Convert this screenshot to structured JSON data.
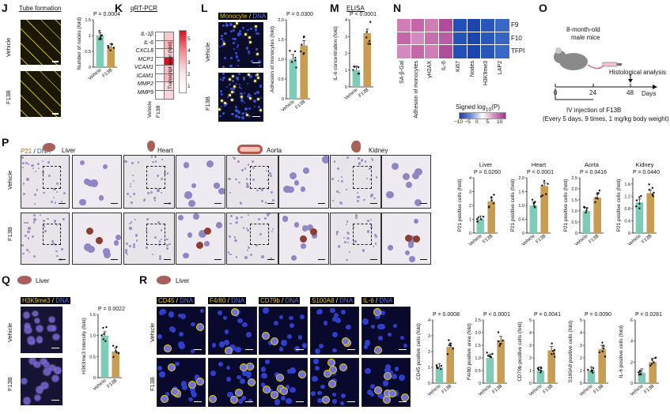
{
  "panels": {
    "J": {
      "letter": "J",
      "title": "Tube formation",
      "row_labels": [
        "Vehicle",
        "F13B"
      ],
      "p": "P = 0.0004"
    },
    "K": {
      "letter": "K",
      "title": "qRT-PCR",
      "genes": [
        "IL-1β",
        "IL-6",
        "CXCL8",
        "MCP1",
        "VCAM1",
        "ICAM1",
        "MMP2",
        "MMP9"
      ],
      "colorbar_label": "Transcript level (fold)",
      "colorbar_ticks": [
        "5",
        "4",
        "3",
        "2",
        "1"
      ],
      "col_labels": [
        "Vehicle",
        "F13B"
      ],
      "f13b_colors": [
        "#f6c8cc",
        "#f4b5bb",
        "#f7cfd3",
        "#d9101d",
        "#f6c1c6",
        "#f5bac0",
        "#f9dadd",
        "#f8d4d8"
      ]
    },
    "L": {
      "letter": "L",
      "title_a": "Monocyte",
      "title_sep": " / ",
      "title_b": "DNA",
      "row_labels": [
        "Vehicle",
        "F13B"
      ],
      "p": "P = 0.0300"
    },
    "M": {
      "letter": "M",
      "title": "ELISA",
      "p": "P < 0.0001"
    },
    "N": {
      "letter": "N",
      "rows": [
        "F9",
        "F10",
        "TFPI"
      ],
      "cols": [
        "SA-β-Gal",
        "Adhesion of monocytes",
        "γH2AX",
        "IL-6",
        "Ki67",
        "Nodes",
        "H3K9me3",
        "LAP2"
      ],
      "colors": [
        [
          "#cf7fb6",
          "#c466a9",
          "#cf7fb6",
          "#b04d9a",
          "#2250b8",
          "#1e44ad",
          "#2a56bb",
          "#3a68c4"
        ],
        [
          "#c466a9",
          "#d48ac0",
          "#c570ab",
          "#ba5ca3",
          "#2352b8",
          "#1e44ad",
          "#2856bb",
          "#3666c2"
        ],
        [
          "#d48ac0",
          "#c466a9",
          "#cf7fb6",
          "#b04d9a",
          "#2250b8",
          "#1e44ad",
          "#2a56bb",
          "#3a68c4"
        ]
      ],
      "legend_title": "Signed log",
      "legend_sub": "10",
      "legend_title_end": "(P)",
      "legend_ticks": [
        "−10",
        "−5",
        "0",
        "5",
        "10"
      ]
    },
    "O": {
      "letter": "O",
      "mouse_text_1": "8-month-old",
      "mouse_text_2": "male mice",
      "timeline_ticks": [
        "0",
        "24",
        "48"
      ],
      "timeline_unit": "Days",
      "histology": "Histological analysis",
      "injection_1": "IV injection of F13B",
      "injection_2": "(Every 5 days, 9 times, 1 mg/kg body weight)"
    },
    "P": {
      "letter": "P",
      "stain_a": "P21",
      "stain_sep": " / ",
      "stain_b": "DNA",
      "organs": [
        "Liver",
        "Heart",
        "Aorta",
        "Kidney"
      ],
      "row_labels": [
        "Vehicle",
        "F13B"
      ],
      "ylabel": "P21 positive cells (fold)",
      "pvals": [
        "P = 0.0260",
        "P < 0.0001",
        "P = 0.0416",
        "P = 0.0440"
      ]
    },
    "Q": {
      "letter": "Q",
      "organ": "Liver",
      "stain_a": "H3K9me3",
      "stain_sep": " / ",
      "stain_b": "DNA",
      "row_labels": [
        "Vehicle",
        "F13B"
      ],
      "p": "P = 0.0022",
      "ylabel": "H3K9me3 Intensity (fold)"
    },
    "R": {
      "letter": "R",
      "organ": "Liver",
      "stains": [
        "CD45",
        "F4/80",
        "CD79b",
        "S100A8",
        "IL-6"
      ],
      "stain_sep": " / ",
      "stain_dna": "DNA",
      "row_labels": [
        "Vehicle",
        "F13B"
      ],
      "ylabels": [
        "CD45 positive cells (fold)",
        "F4/80 positive area (fold)",
        "CD79b positive cells (fold)",
        "S100A8 positive cells (fold)",
        "IL-6 positive cells (fold)"
      ],
      "pvals": [
        "P = 0.0008",
        "P < 0.0001",
        "P = 0.0041",
        "P = 0.0090",
        "P = 0.0281"
      ]
    }
  },
  "colors": {
    "vehicle": "#7fcbb7",
    "f13b": "#c79c55",
    "yellow": "#f0d000",
    "dna": "#3b5bd6"
  },
  "chart_data": [
    {
      "type": "bar",
      "panel": "J",
      "categories": [
        "Vehicle",
        "F13B"
      ],
      "values": [
        1.0,
        0.65
      ],
      "ylabel": "Number of nodes (fold)",
      "ylim": [
        0,
        1.5
      ],
      "yticks": [
        "0",
        "0.5",
        "1",
        "1.5"
      ],
      "p": "P = 0.0004"
    },
    {
      "type": "bar",
      "panel": "L",
      "categories": [
        "Vehicle",
        "F13B"
      ],
      "values": [
        1.0,
        1.35
      ],
      "ylabel": "Adhesion of monocytes (fold)",
      "ylim": [
        0,
        2.0
      ],
      "yticks": [
        "0",
        "0.5",
        "1.0",
        "1.5",
        "2.0"
      ],
      "p": "P = 0.0300"
    },
    {
      "type": "bar",
      "panel": "M",
      "categories": [
        "Vehicle",
        "F13B"
      ],
      "values": [
        1.0,
        3.2
      ],
      "ylabel": "IL-6 concentration (fold)",
      "ylim": [
        0,
        4
      ],
      "yticks": [
        "0",
        "1",
        "2",
        "3",
        "4"
      ],
      "p": "P < 0.0001"
    },
    {
      "type": "bar",
      "panel": "P-Liver",
      "categories": [
        "Vehicle",
        "F13B"
      ],
      "values": [
        1.0,
        2.3
      ],
      "ylabel": "P21 positive cells (fold)",
      "ylim": [
        0,
        4
      ],
      "yticks": [
        "0",
        "1",
        "2",
        "3",
        "4"
      ],
      "p": "P = 0.0260"
    },
    {
      "type": "bar",
      "panel": "P-Heart",
      "categories": [
        "Vehicle",
        "F13B"
      ],
      "values": [
        1.0,
        1.7
      ],
      "ylabel": "P21 positive cells (fold)",
      "ylim": [
        0,
        2.0
      ],
      "yticks": [
        "0",
        "0.5",
        "1.0",
        "1.5",
        "2.0"
      ],
      "p": "P < 0.0001"
    },
    {
      "type": "bar",
      "panel": "P-Aorta",
      "categories": [
        "Vehicle",
        "F13B"
      ],
      "values": [
        1.0,
        1.6
      ],
      "ylabel": "P21 positive cells (fold)",
      "ylim": [
        0,
        2.5
      ],
      "yticks": [
        "0",
        "0.5",
        "1.0",
        "1.5",
        "2.0",
        "2.5"
      ],
      "p": "P = 0.0416"
    },
    {
      "type": "bar",
      "panel": "P-Kidney",
      "categories": [
        "Vehicle",
        "F13B"
      ],
      "values": [
        1.0,
        1.3
      ],
      "ylabel": "P21 positive cells (fold)",
      "ylim": [
        0,
        1.8
      ],
      "yticks": [
        "0",
        "0.4",
        "0.8",
        "1.2",
        "1.6"
      ],
      "p": "P = 0.0440"
    },
    {
      "type": "bar",
      "panel": "Q",
      "categories": [
        "Vehicle",
        "F13B"
      ],
      "values": [
        1.0,
        0.62
      ],
      "ylabel": "H3K9me3 Intensity (fold)",
      "ylim": [
        0,
        1.5
      ],
      "yticks": [
        "0",
        "0.5",
        "1.0",
        "1.5"
      ],
      "p": "P = 0.0022"
    },
    {
      "type": "bar",
      "panel": "R-CD45",
      "categories": [
        "Vehicle",
        "F13B"
      ],
      "values": [
        1.0,
        2.3
      ],
      "ylabel": "CD45 positive cells (fold)",
      "ylim": [
        0,
        4
      ],
      "yticks": [
        "0",
        "1",
        "2",
        "3",
        "4"
      ],
      "p": "P = 0.0008"
    },
    {
      "type": "bar",
      "panel": "R-F4/80",
      "categories": [
        "Vehicle",
        "F13B"
      ],
      "values": [
        1.0,
        1.7
      ],
      "ylabel": "F4/80 positive area (fold)",
      "ylim": [
        0,
        2.5
      ],
      "yticks": [
        "0",
        "0.5",
        "1.0",
        "1.5",
        "2.0",
        "2.5"
      ],
      "p": "P < 0.0001"
    },
    {
      "type": "bar",
      "panel": "R-CD79b",
      "categories": [
        "Vehicle",
        "F13B"
      ],
      "values": [
        1.0,
        2.6
      ],
      "ylabel": "CD79b positive cells (fold)",
      "ylim": [
        0,
        5
      ],
      "yticks": [
        "0",
        "1",
        "2",
        "3",
        "4",
        "5"
      ],
      "p": "P = 0.0041"
    },
    {
      "type": "bar",
      "panel": "R-S100A8",
      "categories": [
        "Vehicle",
        "F13B"
      ],
      "values": [
        1.0,
        2.7
      ],
      "ylabel": "S100A8 positive cells (fold)",
      "ylim": [
        0,
        5
      ],
      "yticks": [
        "0",
        "1",
        "2",
        "3",
        "4",
        "5"
      ],
      "p": "P = 0.0090"
    },
    {
      "type": "bar",
      "panel": "R-IL6",
      "categories": [
        "Vehicle",
        "F13B"
      ],
      "values": [
        1.0,
        2.0
      ],
      "ylabel": "IL-6 positive cells (fold)",
      "ylim": [
        0,
        6
      ],
      "yticks": [
        "0",
        "2",
        "4",
        "6"
      ],
      "p": "P = 0.0281"
    }
  ]
}
